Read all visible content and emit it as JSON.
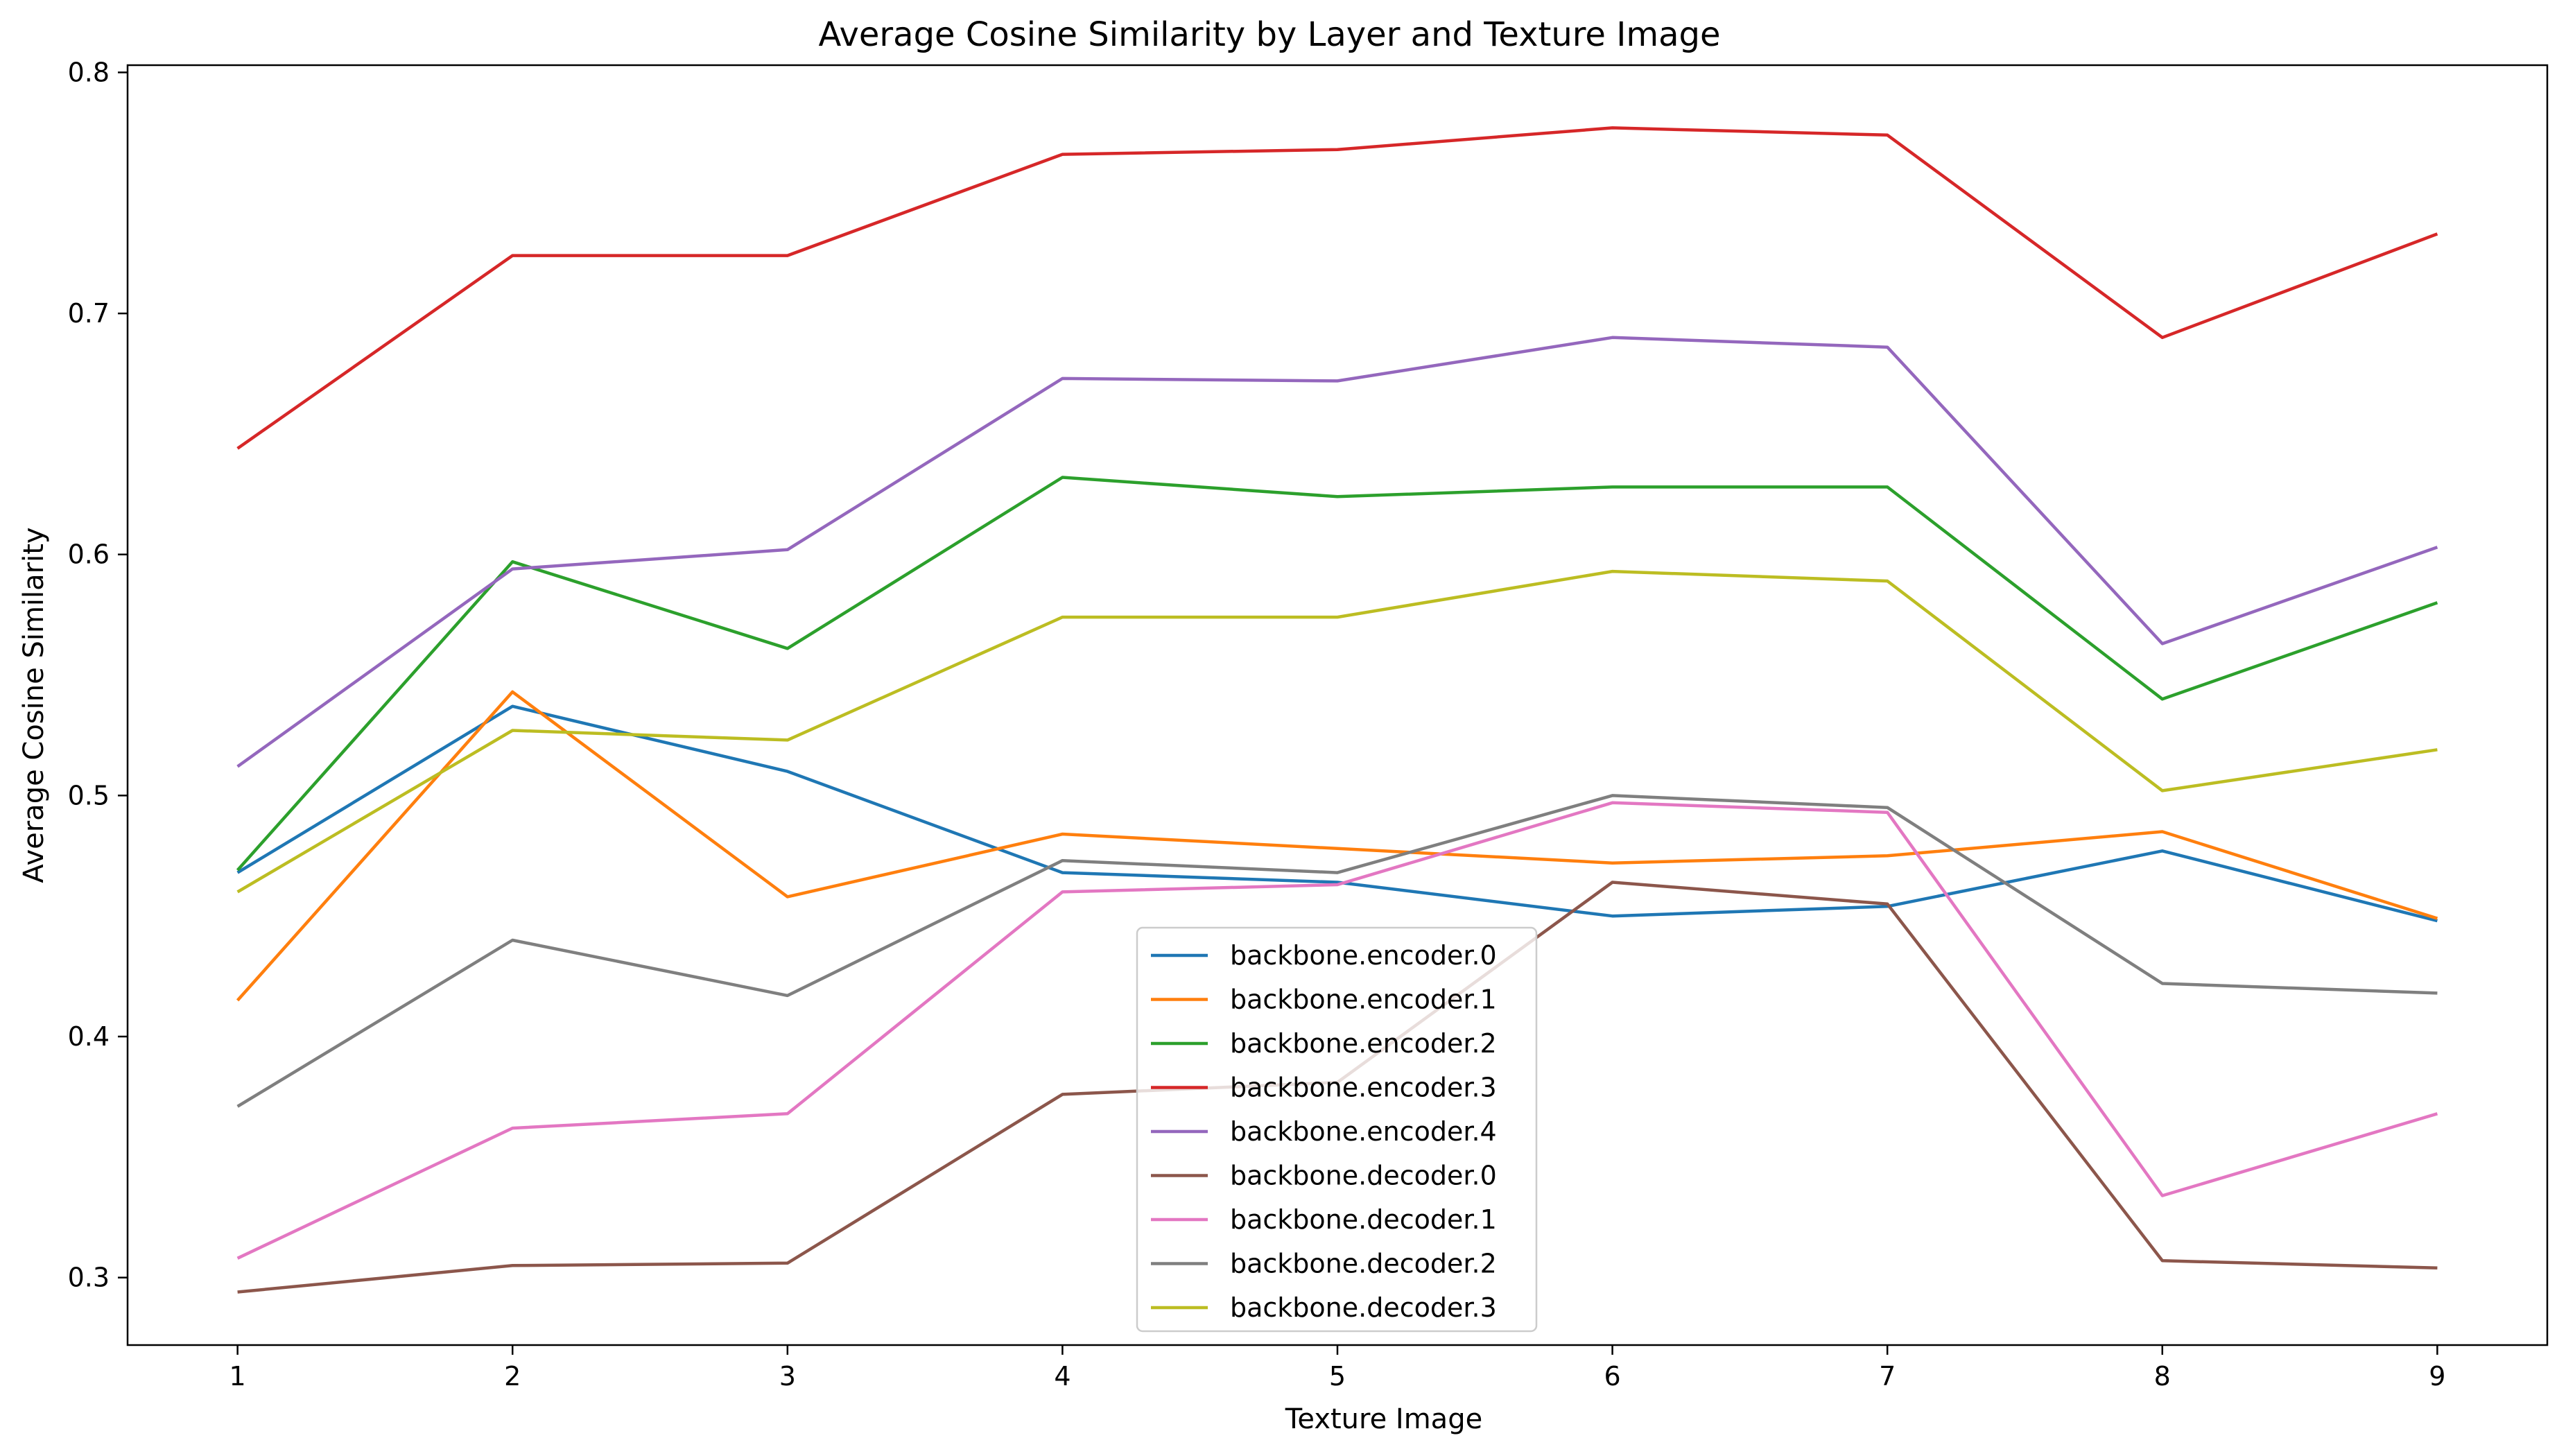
{
  "chart_data": {
    "type": "line",
    "title": "Average Cosine Similarity by Layer and Texture Image",
    "xlabel": "Texture Image",
    "ylabel": "Average Cosine Similarity",
    "x": [
      1,
      2,
      3,
      4,
      5,
      6,
      7,
      8,
      9
    ],
    "x_ticks": [
      "1",
      "2",
      "3",
      "4",
      "5",
      "6",
      "7",
      "8",
      "9"
    ],
    "xlim": [
      0.6,
      9.4
    ],
    "y_ticks": [
      "0.3",
      "0.4",
      "0.5",
      "0.6",
      "0.7",
      "0.8"
    ],
    "ylim": [
      0.272,
      0.803
    ],
    "grid": false,
    "legend_placement": "bottom-center",
    "series": [
      {
        "name": "backbone.encoder.0",
        "color": "#1f77b4",
        "values": [
          0.468,
          0.537,
          0.51,
          0.468,
          0.464,
          0.45,
          0.454,
          0.477,
          0.448
        ]
      },
      {
        "name": "backbone.encoder.1",
        "color": "#ff7f0e",
        "values": [
          0.415,
          0.543,
          0.458,
          0.484,
          0.478,
          0.472,
          0.475,
          0.485,
          0.449
        ]
      },
      {
        "name": "backbone.encoder.2",
        "color": "#2ca02c",
        "values": [
          0.469,
          0.597,
          0.561,
          0.632,
          0.624,
          0.628,
          0.628,
          0.54,
          0.58
        ]
      },
      {
        "name": "backbone.encoder.3",
        "color": "#d62728",
        "values": [
          0.644,
          0.724,
          0.724,
          0.766,
          0.768,
          0.777,
          0.774,
          0.69,
          0.733
        ]
      },
      {
        "name": "backbone.encoder.4",
        "color": "#9467bd",
        "values": [
          0.512,
          0.594,
          0.602,
          0.673,
          0.672,
          0.69,
          0.686,
          0.563,
          0.603
        ]
      },
      {
        "name": "backbone.decoder.0",
        "color": "#8c564b",
        "values": [
          0.294,
          0.305,
          0.306,
          0.376,
          0.381,
          0.464,
          0.455,
          0.307,
          0.304
        ]
      },
      {
        "name": "backbone.decoder.1",
        "color": "#e377c2",
        "values": [
          0.308,
          0.362,
          0.368,
          0.46,
          0.463,
          0.497,
          0.493,
          0.334,
          0.368
        ]
      },
      {
        "name": "backbone.decoder.2",
        "color": "#7f7f7f",
        "values": [
          0.371,
          0.44,
          0.417,
          0.473,
          0.468,
          0.5,
          0.495,
          0.422,
          0.418
        ]
      },
      {
        "name": "backbone.decoder.3",
        "color": "#bcbd22",
        "values": [
          0.46,
          0.527,
          0.523,
          0.574,
          0.574,
          0.593,
          0.589,
          0.502,
          0.519
        ]
      }
    ]
  }
}
